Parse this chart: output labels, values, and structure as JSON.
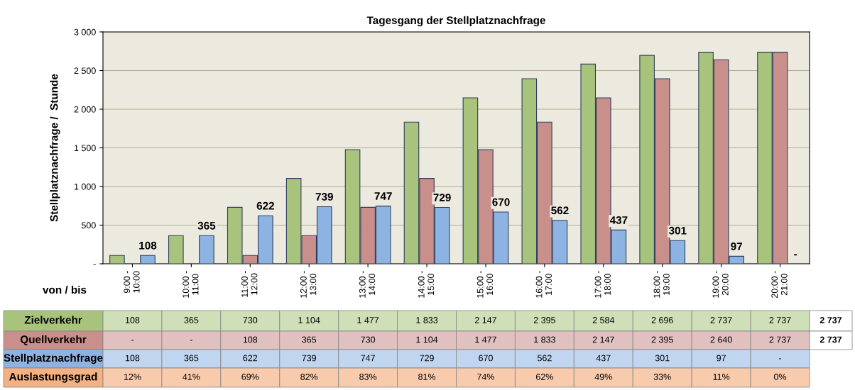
{
  "chart_data": {
    "type": "bar",
    "title": "Tagesgang der Stellplatznachfrage",
    "xlabel": "von / bis",
    "ylabel": "Stellplatznachfrage /  Stunde",
    "categories": [
      "9:00 -\n10:00",
      "10:00 -\n11:00",
      "11:00 -\n12:00",
      "12:00 -\n13:00",
      "13:00 -\n14:00",
      "14:00 -\n15:00",
      "15:00 -\n16:00",
      "16:00 -\n17:00",
      "17:00 -\n18:00",
      "18:00 -\n19:00",
      "19:00 -\n20:00",
      "20:00 -\n21:00"
    ],
    "series": [
      {
        "name": "Zielverkehr",
        "color": "#a8c47c",
        "values": [
          108,
          365,
          730,
          1104,
          1477,
          1833,
          2147,
          2395,
          2584,
          2696,
          2737,
          2737
        ],
        "value_labels": [
          "108",
          "365",
          "730",
          "1 104",
          "1 477",
          "1 833",
          "2 147",
          "2 395",
          "2 584",
          "2 696",
          "2 737",
          "2 737"
        ]
      },
      {
        "name": "Quellverkehr",
        "color": "#c98f8a",
        "values": [
          0,
          0,
          108,
          365,
          730,
          1104,
          1477,
          1833,
          2147,
          2395,
          2640,
          2737
        ],
        "value_labels": [
          "-",
          "-",
          "108",
          "365",
          "730",
          "1 104",
          "1 477",
          "1 833",
          "2 147",
          "2 395",
          "2 640",
          "2 737"
        ]
      },
      {
        "name": "Stellplatznachfrage",
        "color": "#8db3e2",
        "values": [
          108,
          365,
          622,
          739,
          747,
          729,
          670,
          562,
          437,
          301,
          97,
          0
        ],
        "value_labels": [
          "108",
          "365",
          "622",
          "739",
          "747",
          "729",
          "670",
          "562",
          "437",
          "301",
          "97",
          "-"
        ]
      }
    ],
    "annotations": [
      "Auslastungsgrad",
      "12%",
      "41%",
      "69%",
      "82%",
      "83%",
      "81%",
      "74%",
      "62%",
      "49%",
      "33%",
      "11%",
      "0%",
      "2 737",
      "2 737"
    ],
    "ylim": [
      0,
      3000
    ],
    "yticks": [
      {
        "value": 0,
        "label": "-"
      },
      500,
      {
        "value": 1000,
        "label": "1 000"
      },
      {
        "value": 1500,
        "label": "1 500"
      },
      {
        "value": 2000,
        "label": "2 000"
      },
      {
        "value": 2500,
        "label": "2 500"
      },
      {
        "value": 3000,
        "label": "3 000"
      }
    ],
    "grid": "y",
    "data_labels": true,
    "legend": false
  }
}
